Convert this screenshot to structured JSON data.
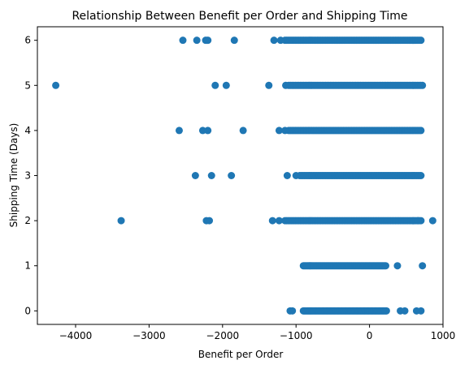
{
  "chart_data": {
    "type": "scatter",
    "title": "Relationship Between Benefit per Order and Shipping Time",
    "xlabel": "Benefit per Order",
    "ylabel": "Shipping Time (Days)",
    "xlim": [
      -4520,
      1000
    ],
    "ylim": [
      -0.3,
      6.3
    ],
    "x_ticks": [
      -4000,
      -3000,
      -2000,
      -1000,
      0,
      1000
    ],
    "x_tick_labels": [
      "−4000",
      "−3000",
      "−2000",
      "−1000",
      "0",
      "1000"
    ],
    "y_ticks": [
      0,
      1,
      2,
      3,
      4,
      5,
      6
    ],
    "y_tick_labels": [
      "0",
      "1",
      "2",
      "3",
      "4",
      "5",
      "6"
    ],
    "grid": false,
    "marker_color": "#1f77b4",
    "series": [
      {
        "points": [
          {
            "y": 6,
            "x": -2540
          },
          {
            "y": 6,
            "x": -2350
          },
          {
            "y": 6,
            "x": -2230
          },
          {
            "y": 6,
            "x": -2200
          },
          {
            "y": 6,
            "x": -1840
          },
          {
            "y": 6,
            "x": -1300
          },
          {
            "y": 6,
            "x": -1210
          },
          {
            "y": 5,
            "x": -4270
          },
          {
            "y": 5,
            "x": -2100
          },
          {
            "y": 5,
            "x": -1950
          },
          {
            "y": 5,
            "x": -1370
          },
          {
            "y": 5,
            "x": -1140
          },
          {
            "y": 4,
            "x": -2590
          },
          {
            "y": 4,
            "x": -2270
          },
          {
            "y": 4,
            "x": -2200
          },
          {
            "y": 4,
            "x": -1720
          },
          {
            "y": 4,
            "x": -1230
          },
          {
            "y": 4,
            "x": -1150
          },
          {
            "y": 3,
            "x": -2370
          },
          {
            "y": 3,
            "x": -2150
          },
          {
            "y": 3,
            "x": -1880
          },
          {
            "y": 3,
            "x": -1120
          },
          {
            "y": 3,
            "x": -1000
          },
          {
            "y": 2,
            "x": -3380
          },
          {
            "y": 2,
            "x": -2220
          },
          {
            "y": 2,
            "x": -2180
          },
          {
            "y": 2,
            "x": -1320
          },
          {
            "y": 2,
            "x": -1230
          },
          {
            "y": 2,
            "x": 660
          },
          {
            "y": 2,
            "x": 860
          },
          {
            "y": 1,
            "x": 380
          },
          {
            "y": 1,
            "x": 720
          },
          {
            "y": 0,
            "x": -1080
          },
          {
            "y": 0,
            "x": -1050
          },
          {
            "y": 0,
            "x": 420
          },
          {
            "y": 0,
            "x": 480
          },
          {
            "y": 0,
            "x": 640
          },
          {
            "y": 0,
            "x": 700
          }
        ],
        "dense_ranges": [
          {
            "y": 6,
            "x_from": -1150,
            "x_to": 700
          },
          {
            "y": 5,
            "x_from": -1100,
            "x_to": 720
          },
          {
            "y": 4,
            "x_from": -1100,
            "x_to": 700
          },
          {
            "y": 3,
            "x_from": -950,
            "x_to": 700
          },
          {
            "y": 2,
            "x_from": -1150,
            "x_to": 700
          },
          {
            "y": 1,
            "x_from": -900,
            "x_to": 220
          },
          {
            "y": 0,
            "x_from": -900,
            "x_to": 230
          }
        ]
      }
    ]
  }
}
